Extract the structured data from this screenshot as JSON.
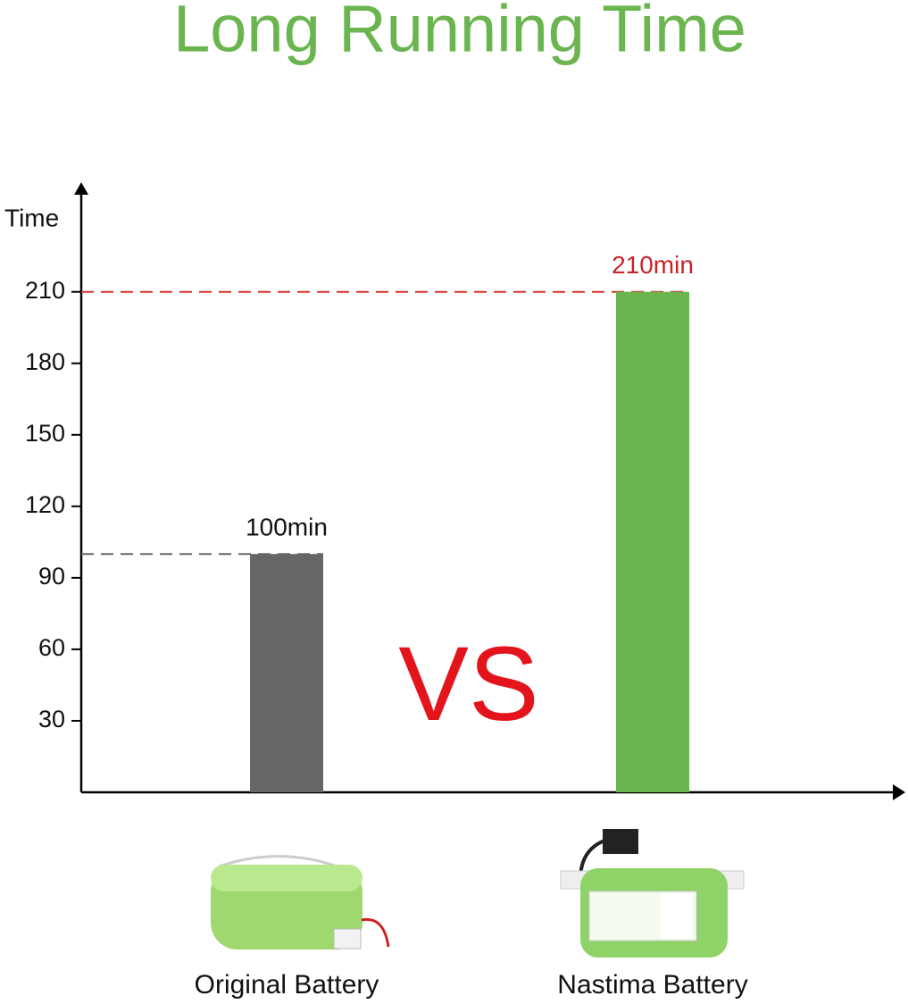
{
  "chart_data": {
    "type": "bar",
    "title": "Long Running Time",
    "y_label": "Time",
    "categories": [
      "Original Battery",
      "Nastima Battery"
    ],
    "values": [
      100,
      210
    ],
    "value_labels": [
      "100min",
      "210min"
    ],
    "colors": [
      "#666666",
      "#6ab54f"
    ],
    "value_label_colors": [
      "#111111",
      "#c8232b"
    ],
    "annotation": "VS",
    "ylim": [
      0,
      250
    ],
    "yticks": [
      30,
      60,
      90,
      120,
      150,
      180,
      210
    ],
    "grid": false
  }
}
